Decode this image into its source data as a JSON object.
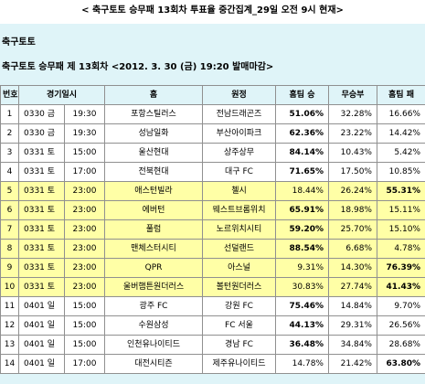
{
  "page_title": "< 축구토토 승무패 13회차 투표율 중간집계_29일 오전 9시 현재>",
  "section_heading": "축구토토",
  "subheading": "축구토토 승무패 제 13회차 <2012. 3. 30 (금) 19:20 발매마감>",
  "columns": [
    "번호",
    "경기일시",
    "홈",
    "원정",
    "홈팀 승",
    "무승부",
    "홈팀 패"
  ],
  "highlight_color": "#ffffa6",
  "rows": [
    {
      "no": "1",
      "date": "0330 금",
      "time": "19:30",
      "home": "포항스틸러스",
      "away": "전남드래곤즈",
      "win": "51.06%",
      "draw": "32.28%",
      "loss": "16.66%"
    },
    {
      "no": "2",
      "date": "0330 금",
      "time": "19:30",
      "home": "성남일화",
      "away": "부산아이파크",
      "win": "62.36%",
      "draw": "23.22%",
      "loss": "14.42%"
    },
    {
      "no": "3",
      "date": "0331 토",
      "time": "15:00",
      "home": "울산현대",
      "away": "상주상무",
      "win": "84.14%",
      "draw": "10.43%",
      "loss": "5.42%"
    },
    {
      "no": "4",
      "date": "0331 토",
      "time": "17:00",
      "home": "전북현대",
      "away": "대구 FC",
      "win": "71.65%",
      "draw": "17.50%",
      "loss": "10.85%"
    },
    {
      "no": "5",
      "date": "0331 토",
      "time": "23:00",
      "home": "애스턴빌라",
      "away": "첼시",
      "win": "18.44%",
      "draw": "26.24%",
      "loss": "55.31%"
    },
    {
      "no": "6",
      "date": "0331 토",
      "time": "23:00",
      "home": "에버턴",
      "away": "웨스트브롬위치",
      "win": "65.91%",
      "draw": "18.98%",
      "loss": "15.11%"
    },
    {
      "no": "7",
      "date": "0331 토",
      "time": "23:00",
      "home": "풀럼",
      "away": "노르위치시티",
      "win": "59.20%",
      "draw": "25.70%",
      "loss": "15.10%"
    },
    {
      "no": "8",
      "date": "0331 토",
      "time": "23:00",
      "home": "맨체스터시티",
      "away": "선덜랜드",
      "win": "88.54%",
      "draw": "6.68%",
      "loss": "4.78%"
    },
    {
      "no": "9",
      "date": "0331 토",
      "time": "23:00",
      "home": "QPR",
      "away": "아스널",
      "win": "9.31%",
      "draw": "14.30%",
      "loss": "76.39%"
    },
    {
      "no": "10",
      "date": "0331 토",
      "time": "23:00",
      "home": "울버햄튼원더러스",
      "away": "볼턴원더러스",
      "win": "30.83%",
      "draw": "27.74%",
      "loss": "41.43%"
    },
    {
      "no": "11",
      "date": "0401 일",
      "time": "15:00",
      "home": "광주 FC",
      "away": "강원 FC",
      "win": "75.46%",
      "draw": "14.84%",
      "loss": "9.70%"
    },
    {
      "no": "12",
      "date": "0401 일",
      "time": "15:00",
      "home": "수원삼성",
      "away": "FC 서울",
      "win": "44.13%",
      "draw": "29.31%",
      "loss": "26.56%"
    },
    {
      "no": "13",
      "date": "0401 일",
      "time": "15:00",
      "home": "인천유나이티드",
      "away": "경남 FC",
      "win": "36.48%",
      "draw": "34.84%",
      "loss": "28.68%"
    },
    {
      "no": "14",
      "date": "0401 일",
      "time": "17:00",
      "home": "대전시티즌",
      "away": "제주유나이티드",
      "win": "14.78%",
      "draw": "21.42%",
      "loss": "63.80%"
    }
  ],
  "highlighted_rows": [
    5,
    6,
    7,
    8,
    9,
    10
  ]
}
